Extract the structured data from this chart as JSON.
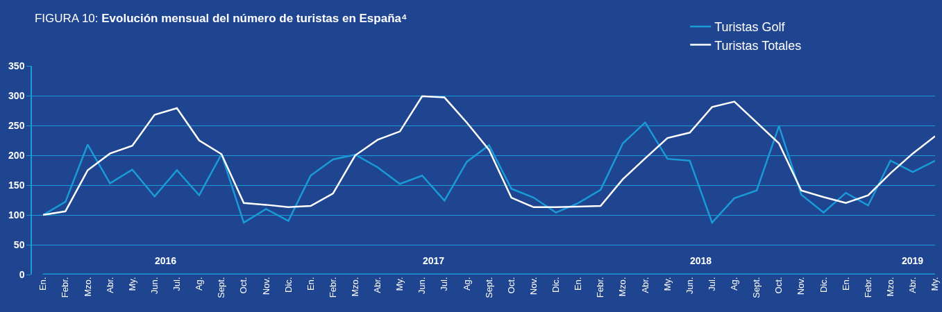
{
  "chart_data": {
    "type": "line",
    "title": "FIGURA 10: Evolución mensual del número de turistas en España⁴",
    "categories": [
      "En.",
      "Febr.",
      "Mzo.",
      "Abr.",
      "My.",
      "Jun.",
      "Jul.",
      "Ag.",
      "Sept.",
      "Oct.",
      "Nov.",
      "Dic.",
      "En.",
      "Febr.",
      "Mzo.",
      "Abr.",
      "My.",
      "Jun.",
      "Jul.",
      "Ag.",
      "Sept.",
      "Oct.",
      "Nov.",
      "Dic.",
      "En.",
      "Febr.",
      "Mzo.",
      "Abr.",
      "My.",
      "Jun.",
      "Jul.",
      "Ag.",
      "Sept.",
      "Oct.",
      "Nov.",
      "Dic.",
      "En.",
      "Febr.",
      "Mzo.",
      "Abr.",
      "My."
    ],
    "series": [
      {
        "name": "Turistas Golf",
        "color": "#1a9ad6",
        "values": [
          100,
          122,
          218,
          153,
          176,
          131,
          175,
          133,
          202,
          87,
          110,
          90,
          166,
          193,
          201,
          180,
          152,
          166,
          124,
          189,
          217,
          144,
          129,
          104,
          120,
          142,
          220,
          255,
          194,
          191,
          87,
          128,
          141,
          249,
          134,
          104,
          137,
          116,
          191,
          172,
          191
        ]
      },
      {
        "name": "Turistas Totales",
        "color": "#ffffff",
        "values": [
          100,
          106,
          175,
          203,
          216,
          268,
          279,
          225,
          202,
          120,
          117,
          113,
          115,
          136,
          200,
          226,
          240,
          299,
          297,
          255,
          209,
          129,
          113,
          113,
          114,
          115,
          160,
          195,
          229,
          238,
          281,
          290,
          255,
          220,
          141,
          130,
          120,
          133,
          170,
          203,
          232
        ]
      }
    ],
    "annotations": [
      "2016",
      "2017",
      "2018",
      "2019"
    ],
    "ylim": [
      0,
      350
    ],
    "yticks": [
      0,
      50,
      100,
      150,
      200,
      250,
      300,
      350
    ],
    "grid": "y",
    "legend": "top right",
    "marker": "none",
    "line_style": "solid"
  }
}
